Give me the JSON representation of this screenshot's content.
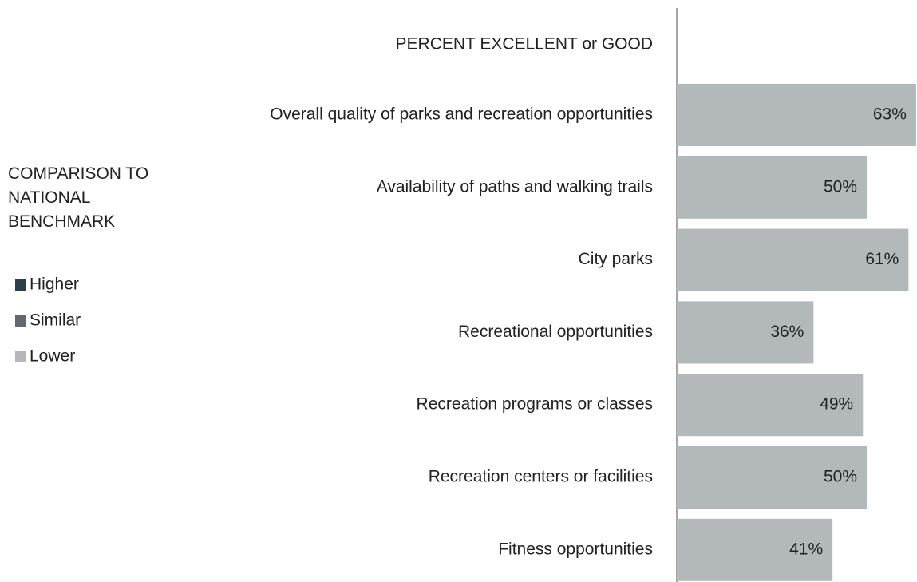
{
  "chart_data": {
    "type": "hbar",
    "title": "PERCENT EXCELLENT or GOOD",
    "categories": [
      "Overall quality of parks and recreation opportunities",
      "Availability of paths and walking trails",
      "City parks",
      "Recreational opportunities",
      "Recreation programs or classes",
      "Recreation centers or facilities",
      "Fitness opportunities"
    ],
    "values": [
      63,
      50,
      61,
      36,
      49,
      50,
      41
    ],
    "value_labels": [
      "63%",
      "50%",
      "61%",
      "36%",
      "49%",
      "50%",
      "41%"
    ],
    "color": "#b3b9bb",
    "legend": {
      "title": "COMPARISON TO NATIONAL BENCHMARK",
      "items": [
        {
          "name": "Higher",
          "color": "#2e3f49"
        },
        {
          "name": "Similar",
          "color": "#5f6b71"
        },
        {
          "name": "Lower",
          "color": "#b3b9bb"
        }
      ]
    }
  }
}
